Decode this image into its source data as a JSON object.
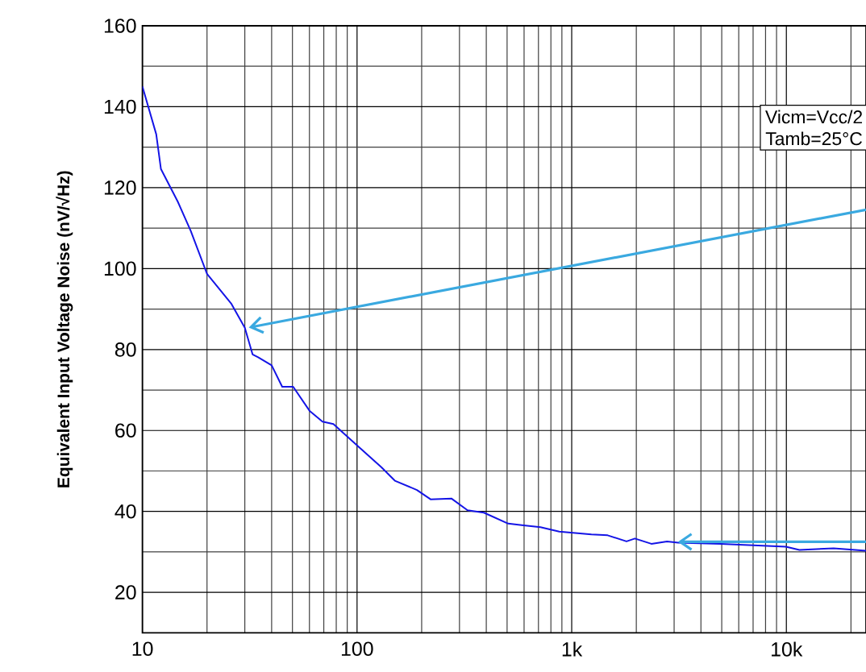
{
  "chart_data": {
    "type": "line",
    "ylabel": "Equivalent Input Voltage Noise (nV/√Hz)",
    "annotations": [
      "Vicm=Vcc/2",
      "Tamb=25°C"
    ],
    "log": "x",
    "grid": true,
    "xlim": [
      10,
      23500
    ],
    "ylim": [
      10,
      160
    ],
    "xticks": [
      10,
      100,
      {
        "value": 1000,
        "label": "1k"
      },
      {
        "value": 10000,
        "label": "10k"
      }
    ],
    "yticks": [
      20,
      40,
      60,
      80,
      100,
      120,
      140,
      160
    ],
    "series": [
      {
        "color": "#1414e6",
        "x": [
          10,
          11.6,
          12.2,
          14.6,
          16.8,
          20,
          25.9,
          30,
          32.6,
          34.6,
          40,
          44.8,
          50.4,
          60,
          69,
          77.6,
          100,
          130,
          150,
          190,
          220,
          275,
          327,
          390,
          506,
          585,
          715,
          875,
          1235,
          1470,
          1800,
          1970,
          2350,
          2780,
          3130,
          4950,
          9950,
          11500,
          16600,
          23500
        ],
        "values": [
          145,
          133.2,
          124.6,
          116.6,
          109.3,
          98.7,
          91.4,
          85.4,
          78.8,
          78.1,
          76.1,
          70.8,
          70.8,
          64.9,
          62.2,
          61.6,
          56.3,
          50.9,
          47.6,
          45.3,
          43,
          43.2,
          40.3,
          39.7,
          37,
          36.6,
          36.1,
          35,
          34.3,
          34.1,
          32.6,
          33.3,
          32,
          32.6,
          32.3,
          32,
          31.3,
          30.5,
          30.9,
          30.3
        ]
      }
    ]
  }
}
